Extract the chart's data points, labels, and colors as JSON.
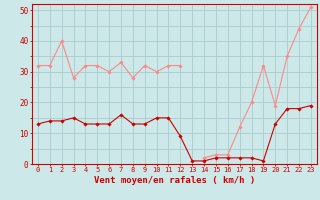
{
  "hours": [
    0,
    1,
    2,
    3,
    4,
    5,
    6,
    7,
    8,
    9,
    10,
    11,
    12,
    13,
    14,
    15,
    16,
    17,
    18,
    19,
    20,
    21,
    22,
    23
  ],
  "wind_avg": [
    13,
    14,
    14,
    15,
    13,
    13,
    13,
    16,
    13,
    13,
    15,
    15,
    9,
    1,
    1,
    2,
    2,
    2,
    2,
    1,
    13,
    18,
    18,
    19
  ],
  "wind_gust": [
    32,
    32,
    40,
    28,
    32,
    32,
    30,
    33,
    28,
    32,
    30,
    32,
    32,
    null,
    2,
    3,
    3,
    12,
    20,
    32,
    19,
    35,
    44,
    51
  ],
  "bg_color": "#cce8e8",
  "grid_color": "#aacccc",
  "avg_color": "#cc0000",
  "gust_color": "#ff8888",
  "axis_color": "#cc0000",
  "xlabel": "Vent moyen/en rafales ( km/h )",
  "ylim": [
    0,
    52
  ],
  "ytick_vals": [
    0,
    5,
    10,
    15,
    20,
    25,
    30,
    35,
    40,
    45,
    50
  ],
  "ytick_labels": [
    "0",
    "",
    "10",
    "",
    "20",
    "",
    "30",
    "",
    "40",
    "",
    "50"
  ],
  "xlim": [
    -0.5,
    23.5
  ]
}
